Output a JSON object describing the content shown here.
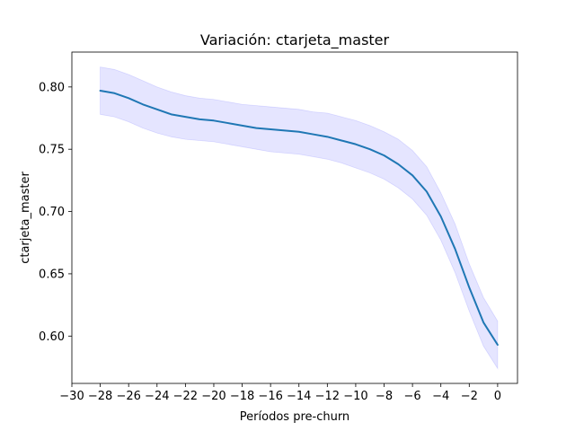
{
  "chart_data": {
    "type": "line",
    "title": "Variación: ctarjeta_master",
    "xlabel": "Períodos pre-churn",
    "ylabel": "ctarjeta_master",
    "xlim": [
      -30,
      1.4
    ],
    "ylim": [
      0.562,
      0.828
    ],
    "xticks": [
      -30,
      -28,
      -26,
      -24,
      -22,
      -20,
      -18,
      -16,
      -14,
      -12,
      -10,
      -8,
      -6,
      -4,
      -2,
      0
    ],
    "xtick_labels": [
      "−30",
      "−28",
      "−26",
      "−24",
      "−22",
      "−20",
      "−18",
      "−16",
      "−14",
      "−12",
      "−10",
      "−8",
      "−6",
      "−4",
      "−2",
      "0"
    ],
    "yticks": [
      0.6,
      0.65,
      0.7,
      0.75,
      0.8
    ],
    "ytick_labels": [
      "0.60",
      "0.65",
      "0.70",
      "0.75",
      "0.80"
    ],
    "grid": false,
    "colors": {
      "line": "#1f77b4",
      "band": "#0000ff"
    },
    "x": [
      -28,
      -27,
      -26,
      -25,
      -24,
      -23,
      -22,
      -21,
      -20,
      -19,
      -18,
      -17,
      -16,
      -15,
      -14,
      -13,
      -12,
      -11,
      -10,
      -9,
      -8,
      -7,
      -6,
      -5,
      -4,
      -3,
      -2,
      -1,
      0
    ],
    "series": [
      {
        "values": [
          0.797,
          0.795,
          0.791,
          0.786,
          0.782,
          0.778,
          0.776,
          0.774,
          0.773,
          0.771,
          0.769,
          0.767,
          0.766,
          0.765,
          0.764,
          0.762,
          0.76,
          0.757,
          0.754,
          0.75,
          0.745,
          0.738,
          0.729,
          0.716,
          0.696,
          0.67,
          0.639,
          0.611,
          0.593
        ],
        "upper": [
          0.816,
          0.814,
          0.81,
          0.805,
          0.8,
          0.796,
          0.793,
          0.791,
          0.79,
          0.788,
          0.786,
          0.785,
          0.784,
          0.783,
          0.782,
          0.78,
          0.779,
          0.776,
          0.773,
          0.769,
          0.764,
          0.758,
          0.749,
          0.736,
          0.715,
          0.69,
          0.658,
          0.631,
          0.612
        ],
        "lower": [
          0.778,
          0.776,
          0.772,
          0.767,
          0.763,
          0.76,
          0.758,
          0.757,
          0.756,
          0.754,
          0.752,
          0.75,
          0.748,
          0.747,
          0.746,
          0.744,
          0.742,
          0.739,
          0.735,
          0.731,
          0.726,
          0.719,
          0.71,
          0.697,
          0.677,
          0.651,
          0.62,
          0.592,
          0.574
        ]
      }
    ]
  }
}
